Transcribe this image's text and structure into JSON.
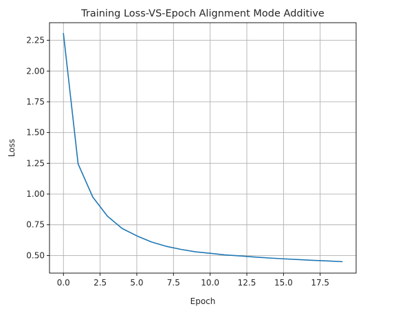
{
  "chart_data": {
    "type": "line",
    "title": "Training Loss-VS-Epoch Alignment Mode Additive",
    "xlabel": "Epoch",
    "ylabel": "Loss",
    "xlim": [
      -0.95,
      19.95
    ],
    "ylim": [
      0.357,
      2.393
    ],
    "xticks": [
      0.0,
      2.5,
      5.0,
      7.5,
      10.0,
      12.5,
      15.0,
      17.5
    ],
    "xtick_labels": [
      "0.0",
      "2.5",
      "5.0",
      "7.5",
      "10.0",
      "12.5",
      "15.0",
      "17.5"
    ],
    "yticks": [
      0.5,
      0.75,
      1.0,
      1.25,
      1.5,
      1.75,
      2.0,
      2.25
    ],
    "ytick_labels": [
      "0.50",
      "0.75",
      "1.00",
      "1.25",
      "1.50",
      "1.75",
      "2.00",
      "2.25"
    ],
    "grid": true,
    "series": [
      {
        "color": "#1f77b4",
        "x": [
          0,
          1,
          2,
          3,
          4,
          5,
          6,
          7,
          8,
          9,
          10,
          11,
          12,
          13,
          14,
          15,
          16,
          17,
          18,
          19
        ],
        "y": [
          2.305,
          1.245,
          0.975,
          0.82,
          0.72,
          0.66,
          0.61,
          0.575,
          0.55,
          0.53,
          0.518,
          0.505,
          0.497,
          0.488,
          0.48,
          0.473,
          0.467,
          0.461,
          0.456,
          0.45
        ]
      }
    ]
  }
}
